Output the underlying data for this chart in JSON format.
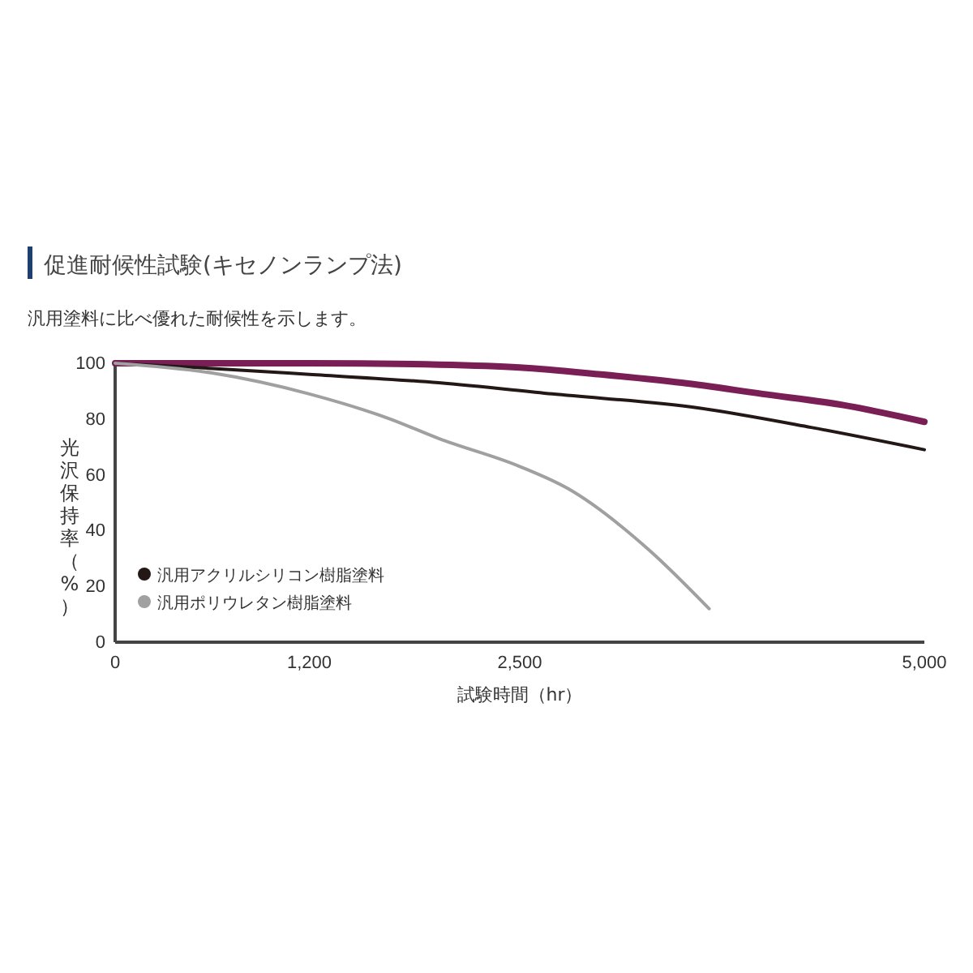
{
  "chart_data": {
    "type": "line",
    "title": "促進耐候性試験(キセノンランプ法)",
    "subtitle": "汎用塗料に比べ優れた耐候性を示します。",
    "xlabel": "試験時間（hr）",
    "ylabel": "光沢保持率（%）",
    "xlim": [
      0,
      5000
    ],
    "xticks": [
      0,
      {
        "value": 1200,
        "label": "1,200"
      },
      {
        "value": 2500,
        "label": "2,500"
      },
      {
        "value": 5000,
        "label": "5,000"
      }
    ],
    "ylim": [
      0,
      100
    ],
    "yticks": [
      0,
      20,
      40,
      60,
      80,
      100
    ],
    "grid": false,
    "legend": "bottom left",
    "marker": "none",
    "line_style": "solid",
    "series": [
      {
        "color": "#7a1f55",
        "x": [
          0,
          600,
          1200,
          2000,
          2500,
          3000,
          3500,
          4000,
          4500,
          5000
        ],
        "values": [
          100,
          100,
          100,
          99.5,
          98.5,
          96,
          93,
          89,
          85,
          79
        ]
      },
      {
        "name": "汎用アクリルシリコン樹脂塗料",
        "color": "#231815",
        "x": [
          0,
          500,
          1200,
          2000,
          2700,
          3600,
          4300,
          5000
        ],
        "values": [
          100,
          98.5,
          96,
          93,
          89,
          84,
          77,
          69
        ]
      },
      {
        "name": "汎用ポリウレタン樹脂塗料",
        "color": "#a0a0a0",
        "x": [
          0,
          600,
          1200,
          1700,
          2000,
          2500,
          2800,
          3300,
          3670
        ],
        "values": [
          100,
          96.5,
          89,
          80,
          73,
          63,
          55,
          33,
          12
        ]
      }
    ]
  }
}
